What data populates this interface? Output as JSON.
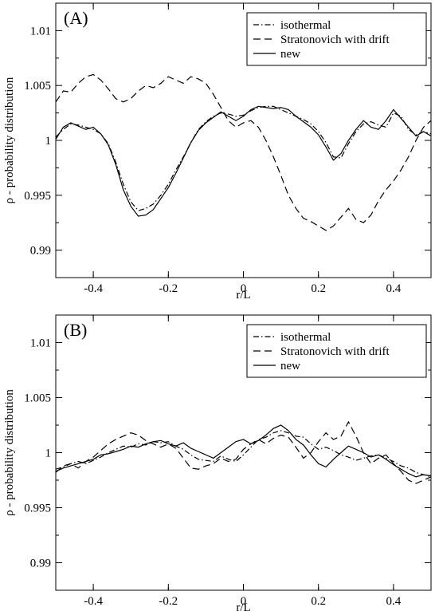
{
  "chart_data": [
    {
      "type": "line",
      "panel_label": "(A)",
      "xlabel": "r/L",
      "ylabel": "ρ - probability distribution",
      "xlim": [
        -0.5,
        0.5
      ],
      "ylim": [
        0.9875,
        1.0125
      ],
      "x_ticks": [
        -0.4,
        -0.2,
        0,
        0.2,
        0.4
      ],
      "x_tick_labels": [
        "-0.4",
        "-0.2",
        "0",
        "0.2",
        "0.4"
      ],
      "y_ticks": [
        0.99,
        0.995,
        1.0,
        1.005,
        1.01
      ],
      "y_tick_labels": [
        "0.99",
        "0.995",
        "1",
        "1.005",
        "1.01"
      ],
      "legend_position": "top-right",
      "x": [
        -0.5,
        -0.48,
        -0.46,
        -0.44,
        -0.42,
        -0.4,
        -0.38,
        -0.36,
        -0.34,
        -0.32,
        -0.3,
        -0.28,
        -0.26,
        -0.24,
        -0.22,
        -0.2,
        -0.18,
        -0.16,
        -0.14,
        -0.12,
        -0.1,
        -0.08,
        -0.06,
        -0.04,
        -0.02,
        0,
        0.02,
        0.04,
        0.06,
        0.08,
        0.1,
        0.12,
        0.14,
        0.16,
        0.18,
        0.2,
        0.22,
        0.24,
        0.26,
        0.28,
        0.3,
        0.32,
        0.34,
        0.36,
        0.38,
        0.4,
        0.42,
        0.44,
        0.46,
        0.48,
        0.5
      ],
      "series": [
        {
          "name": "isothermal",
          "dash": "dashdot",
          "values": [
            1.0003,
            1.001,
            1.0015,
            1.0014,
            1.0012,
            1.001,
            1.0006,
            0.9997,
            0.998,
            0.996,
            0.9944,
            0.9936,
            0.9938,
            0.9942,
            0.995,
            0.996,
            0.9973,
            0.9985,
            0.9998,
            1.001,
            1.0017,
            1.0022,
            1.0025,
            1.0024,
            1.0022,
            1.0023,
            1.0027,
            1.003,
            1.0031,
            1.0031,
            1.0028,
            1.0025,
            1.0022,
            1.0019,
            1.0015,
            1.0008,
            0.9998,
            0.9985,
            0.9984,
            0.9997,
            1.0008,
            1.0015,
            1.0017,
            1.0014,
            1.0012,
            1.0025,
            1.0022,
            1.001,
            1.0005,
            1.0008,
            1.0006
          ]
        },
        {
          "name": "Stratonovich with drift",
          "dash": "dashed",
          "values": [
            1.0035,
            1.0045,
            1.0044,
            1.0052,
            1.0058,
            1.006,
            1.0055,
            1.0047,
            1.0038,
            1.0035,
            1.0038,
            1.0045,
            1.005,
            1.0048,
            1.0052,
            1.0058,
            1.0055,
            1.0052,
            1.0058,
            1.0056,
            1.0052,
            1.0042,
            1.003,
            1.0018,
            1.0012,
            1.0016,
            1.0018,
            1.0012,
            1.0,
            0.9985,
            0.9968,
            0.995,
            0.9938,
            0.9929,
            0.9926,
            0.9922,
            0.9918,
            0.9922,
            0.993,
            0.9938,
            0.9928,
            0.9925,
            0.9932,
            0.9945,
            0.9955,
            0.9963,
            0.9973,
            0.9985,
            1.0,
            1.0012,
            1.0018
          ]
        },
        {
          "name": "new",
          "dash": "solid",
          "values": [
            1.0001,
            1.0012,
            1.0016,
            1.0013,
            1.001,
            1.0012,
            1.0006,
            0.9996,
            0.9978,
            0.9955,
            0.994,
            0.9931,
            0.9932,
            0.9937,
            0.9947,
            0.9957,
            0.997,
            0.9984,
            0.9998,
            1.0009,
            1.0016,
            1.0021,
            1.0026,
            1.0022,
            1.0018,
            1.0022,
            1.0028,
            1.0031,
            1.003,
            1.0029,
            1.003,
            1.0028,
            1.0022,
            1.0017,
            1.0012,
            1.0005,
            0.9994,
            0.9982,
            0.9988,
            1.0,
            1.001,
            1.0018,
            1.0012,
            1.001,
            1.0018,
            1.0028,
            1.002,
            1.0012,
            1.0004,
            1.0008,
            1.0004
          ]
        }
      ]
    },
    {
      "type": "line",
      "panel_label": "(B)",
      "xlabel": "r/L",
      "ylabel": "ρ - probability distribution",
      "xlim": [
        -0.5,
        0.5
      ],
      "ylim": [
        0.9875,
        1.0125
      ],
      "x_ticks": [
        -0.4,
        -0.2,
        0,
        0.2,
        0.4
      ],
      "x_tick_labels": [
        "-0.4",
        "-0.2",
        "0",
        "0.2",
        "0.4"
      ],
      "y_ticks": [
        0.99,
        0.995,
        1.0,
        1.005,
        1.01
      ],
      "y_tick_labels": [
        "0.99",
        "0.995",
        "1",
        "1.005",
        "1.01"
      ],
      "legend_position": "top-right",
      "x": [
        -0.5,
        -0.48,
        -0.46,
        -0.44,
        -0.42,
        -0.4,
        -0.38,
        -0.36,
        -0.34,
        -0.32,
        -0.3,
        -0.28,
        -0.26,
        -0.24,
        -0.22,
        -0.2,
        -0.18,
        -0.16,
        -0.14,
        -0.12,
        -0.1,
        -0.08,
        -0.06,
        -0.04,
        -0.02,
        0,
        0.02,
        0.04,
        0.06,
        0.08,
        0.1,
        0.12,
        0.14,
        0.16,
        0.18,
        0.2,
        0.22,
        0.24,
        0.26,
        0.28,
        0.3,
        0.32,
        0.34,
        0.36,
        0.38,
        0.4,
        0.42,
        0.44,
        0.46,
        0.48,
        0.5
      ],
      "series": [
        {
          "name": "isothermal",
          "dash": "dashdot",
          "values": [
            0.9985,
            0.9987,
            0.999,
            0.9992,
            0.999,
            0.9993,
            0.9996,
            1.0,
            1.0003,
            1.0006,
            1.0005,
            1.0008,
            1.0007,
            1.001,
            1.0009,
            1.001,
            1.0006,
            1.0003,
            0.9998,
            0.9994,
            0.9993,
            0.9992,
            0.9997,
            0.9994,
            0.9992,
            0.9998,
            1.0005,
            1.0012,
            1.0014,
            1.0018,
            1.002,
            1.0018,
            1.0015,
            1.0014,
            1.0008,
            1.0003,
            1.0005,
            1.0002,
            0.9998,
            0.9996,
            0.9993,
            0.9995,
            0.9997,
            0.9998,
            0.9995,
            0.9992,
            0.9988,
            0.9986,
            0.9982,
            0.998,
            0.9978
          ]
        },
        {
          "name": "Stratonovich with drift",
          "dash": "dashed",
          "values": [
            0.9982,
            0.9988,
            0.999,
            0.9986,
            0.9992,
            0.9996,
            1.0002,
            1.0008,
            1.0012,
            1.0015,
            1.0018,
            1.0016,
            1.0011,
            1.0008,
            1.0005,
            1.0008,
            1.0004,
            0.9995,
            0.9986,
            0.9985,
            0.9988,
            0.999,
            0.9995,
            0.9992,
            0.9994,
            1.0003,
            1.0008,
            1.0012,
            1.0008,
            1.0013,
            1.0016,
            1.0014,
            1.0005,
            0.9995,
            1.0,
            1.001,
            1.0018,
            1.0012,
            1.0015,
            1.0028,
            1.0015,
            1.0,
            0.999,
            0.9995,
            0.9998,
            0.999,
            0.9983,
            0.9975,
            0.9972,
            0.9975,
            0.9978
          ]
        },
        {
          "name": "new",
          "dash": "solid",
          "values": [
            0.9983,
            0.9986,
            0.9988,
            0.999,
            0.9992,
            0.9994,
            0.9998,
            0.9999,
            1.0001,
            1.0003,
            1.0006,
            1.0005,
            1.0008,
            1.001,
            1.0011,
            1.0008,
            1.0006,
            1.0009,
            1.0004,
            1.0001,
            0.9998,
            0.9995,
            1.0,
            1.0005,
            1.001,
            1.0012,
            1.0008,
            1.0011,
            1.0016,
            1.0022,
            1.0025,
            1.002,
            1.0012,
            1.0007,
            0.9998,
            0.999,
            0.9987,
            0.9994,
            1.0,
            1.0006,
            1.0003,
            1.0,
            0.9996,
            0.9998,
            0.9994,
            0.9989,
            0.9985,
            0.9981,
            0.9978,
            0.998,
            0.9979
          ]
        }
      ]
    }
  ]
}
